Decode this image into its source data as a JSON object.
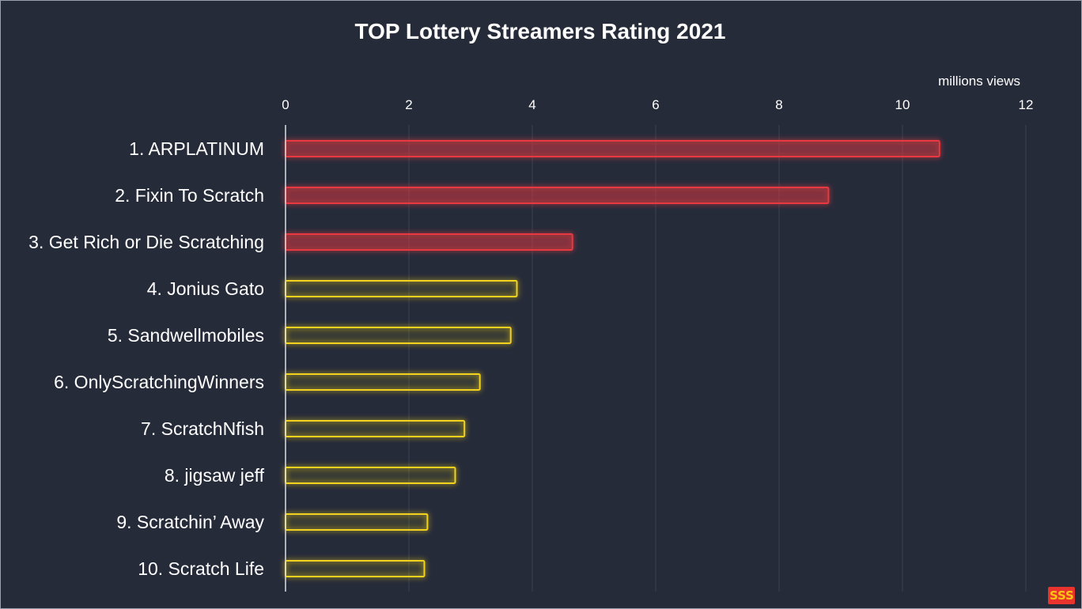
{
  "chart_data": {
    "type": "bar",
    "orientation": "horizontal",
    "title": "TOP Lottery Streamers Rating 2021",
    "unit_label": "millions views",
    "xlim": [
      0,
      12
    ],
    "ticks": [
      "0",
      "2",
      "4",
      "6",
      "8",
      "10",
      "12"
    ],
    "categories": [
      "1. ARPLATINUM",
      "2. Fixin To Scratch",
      "3. Get Rich or Die Scratching",
      "4. Jonius Gato",
      "5. Sandwellmobiles",
      "6. OnlyScratchingWinners",
      "7. ScratchNfish",
      "8. jigsaw jeff",
      "9. Scratchin’ Away",
      "10. Scratch Life"
    ],
    "values": [
      10.6,
      8.8,
      4.65,
      3.75,
      3.65,
      3.15,
      2.9,
      2.75,
      2.3,
      2.25
    ],
    "bar_colors": [
      "#e8393f",
      "#e8393f",
      "#e8393f",
      "#f2d21b",
      "#f2d21b",
      "#f2d21b",
      "#f2d21b",
      "#f2d21b",
      "#f2d21b",
      "#f2d21b"
    ],
    "grid": true,
    "legend": "none"
  },
  "colors": {
    "background": "#262b3a",
    "top3": "#e8393f",
    "others": "#f2d21b"
  },
  "logo": {
    "icon": "brand-logo-icon"
  }
}
